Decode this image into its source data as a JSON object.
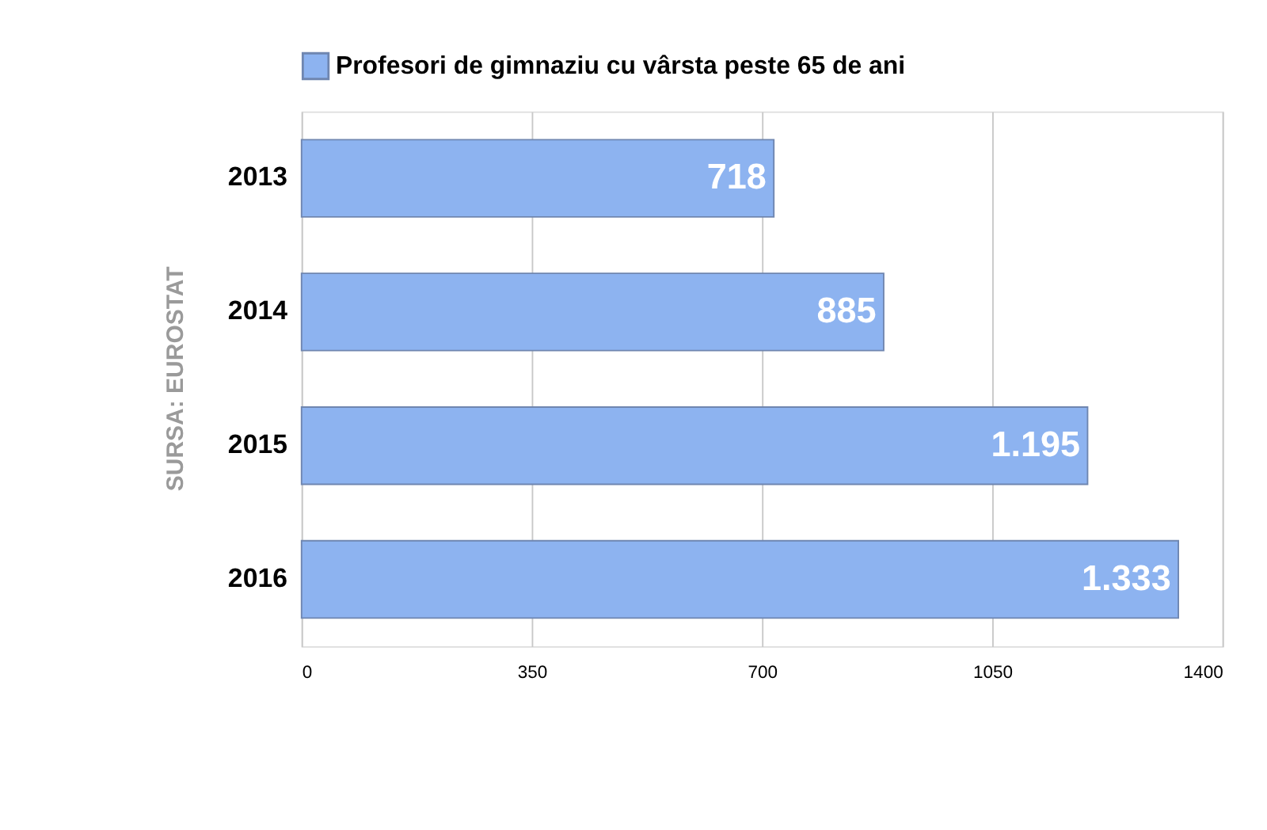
{
  "chart_data": {
    "type": "bar",
    "orientation": "horizontal",
    "categories": [
      "2013",
      "2014",
      "2015",
      "2016"
    ],
    "series": [
      {
        "name": "Profesori de gimnaziu cu vârsta peste 65 de ani",
        "color": "#8db3f0",
        "values": [
          718,
          885,
          1195,
          1333
        ],
        "value_labels": [
          "718",
          "885",
          "1.195",
          "1.333"
        ]
      }
    ],
    "xlim": [
      0,
      1400
    ],
    "xticks": [
      0,
      350,
      700,
      1050,
      1400
    ],
    "grid": "x",
    "legend": "top",
    "annotations": [
      "SURSA: EUROSTAT"
    ]
  }
}
